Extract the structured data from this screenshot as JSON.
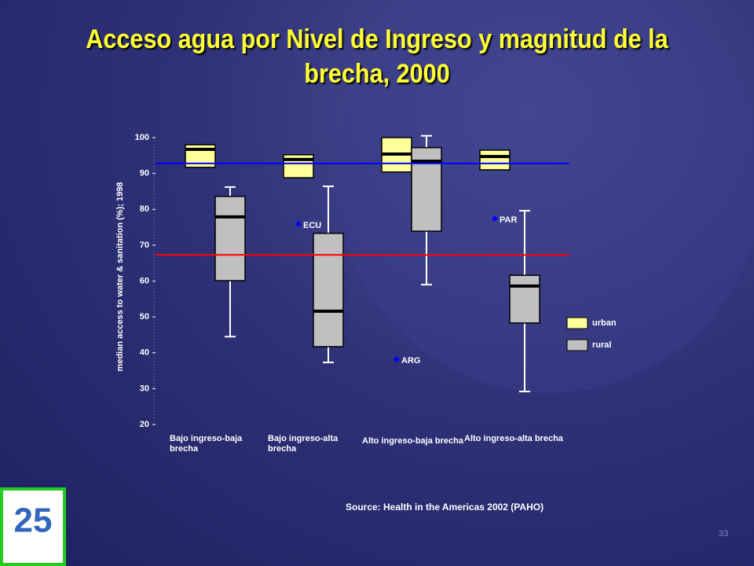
{
  "title": "Acceso agua por Nivel de Ingreso y magnitud de la brecha, 2000",
  "source": "Source: Health in the Americas 2002 (PAHO)",
  "page_number": "33",
  "chart_data": {
    "type": "box",
    "ylabel": "median access to water & sanitation (%); 1998",
    "categories": [
      "Bajo ingreso-baja brecha",
      "Bajo ingreso-alta brecha",
      "Alto ingreso-baja brecha",
      "Alto ingreso-alta brecha"
    ],
    "ylim": [
      20,
      100
    ],
    "yticks": [
      20,
      30,
      40,
      50,
      60,
      70,
      80,
      90,
      100
    ],
    "series": [
      {
        "name": "urban",
        "color": "#ffff99",
        "q1": [
          91.7,
          88.8,
          90.4,
          91.0
        ],
        "median": [
          96.7,
          93.9,
          95.4,
          94.7
        ],
        "q3": [
          98.0,
          95.2,
          100,
          96.5
        ]
      },
      {
        "name": "rural",
        "color": "#c0c0c0",
        "min": [
          44.5,
          37.3,
          59.0,
          29.2
        ],
        "q1": [
          60.1,
          41.7,
          73.9,
          48.3
        ],
        "median": [
          77.9,
          51.6,
          93.4,
          58.6
        ],
        "q3": [
          83.6,
          73.3,
          97.2,
          61.6
        ],
        "max": [
          86.2,
          86.4,
          100.5,
          79.6
        ]
      }
    ],
    "points": [
      {
        "label": "ECU",
        "category": "Bajo ingreso-alta brecha",
        "value": 75.9
      },
      {
        "label": "ARG",
        "category": "Alto ingreso-baja brecha",
        "value": 38.2
      },
      {
        "label": "PAR",
        "category": "Alto ingreso-alta brecha",
        "value": 77.4
      }
    ],
    "reference_lines": [
      {
        "value": 92.8,
        "color": "#0000ff"
      },
      {
        "value": 67.3,
        "color": "#ff0000"
      }
    ]
  }
}
